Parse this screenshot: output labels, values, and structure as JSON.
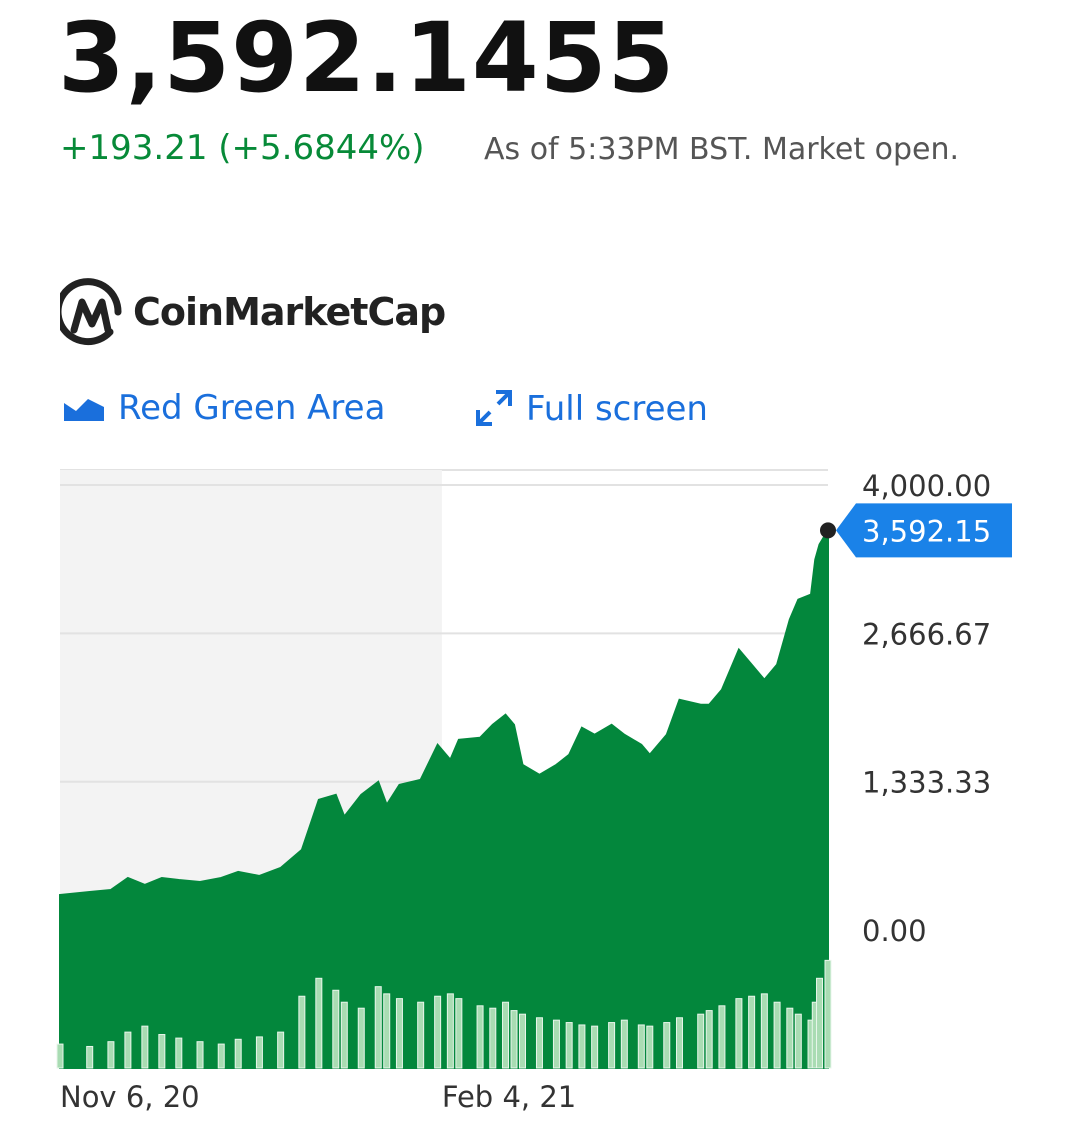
{
  "header": {
    "price": "3,592.1455",
    "change": "+193.21 (+5.6844%)",
    "as_of": "As of 5:33PM BST. Market open.",
    "source": "CoinMarketCap"
  },
  "toolbar": {
    "chart_style": "Red Green Area",
    "full_screen": "Full screen"
  },
  "chart_data": {
    "type": "area",
    "color": "#03873c",
    "volume_color": "#a9dcb3",
    "x": [
      0,
      7,
      12,
      16,
      20,
      24,
      28,
      33,
      38,
      42,
      47,
      52,
      57,
      61,
      65,
      67,
      71,
      75,
      77,
      80,
      85,
      89,
      92,
      94,
      99,
      102,
      105,
      107,
      109,
      113,
      117,
      120,
      123,
      126,
      130,
      133,
      137,
      139,
      143,
      146,
      151,
      153,
      156,
      160,
      163,
      166,
      169,
      172,
      174,
      177,
      178,
      179,
      181
    ],
    "values": [
      315,
      342,
      360,
      468,
      405,
      468,
      450,
      432,
      468,
      522,
      486,
      558,
      720,
      1170,
      1215,
      1020,
      1215,
      1332,
      1125,
      1305,
      1350,
      1665,
      1530,
      1710,
      1728,
      1845,
      1935,
      1845,
      1485,
      1395,
      1485,
      1575,
      1818,
      1755,
      1845,
      1755,
      1665,
      1575,
      1755,
      2070,
      2025,
      2025,
      2160,
      2520,
      2385,
      2250,
      2385,
      2790,
      2970,
      3015,
      3330,
      3465,
      3592.15
    ],
    "value_labels": [
      null,
      null,
      null,
      null,
      null,
      null,
      null,
      null,
      null,
      null,
      null,
      null,
      null,
      null,
      null,
      null,
      null,
      null,
      null,
      null,
      null,
      null,
      null,
      null,
      null,
      null,
      null,
      null,
      null,
      null,
      null,
      null,
      null,
      null,
      null,
      null,
      null,
      null,
      null,
      null,
      null,
      null,
      null,
      null,
      null,
      null,
      null,
      null,
      null,
      null,
      null,
      null,
      "3,592.15"
    ],
    "volume": [
      20,
      18,
      22,
      30,
      35,
      28,
      25,
      22,
      20,
      24,
      26,
      30,
      60,
      75,
      65,
      55,
      50,
      68,
      62,
      58,
      55,
      60,
      62,
      58,
      52,
      50,
      55,
      48,
      45,
      42,
      40,
      38,
      36,
      35,
      38,
      40,
      36,
      35,
      38,
      42,
      45,
      48,
      52,
      58,
      60,
      62,
      55,
      50,
      45,
      40,
      55,
      75,
      90
    ],
    "y2lim": [
      0,
      500
    ],
    "xlim": [
      0,
      181
    ],
    "xticks": [
      {
        "value": 0,
        "label": "Nov 6, 20"
      },
      {
        "value": 90,
        "label": "Feb 4, 21"
      }
    ],
    "ylim": [
      -1240,
      4135
    ],
    "yticks": [
      {
        "value": 0,
        "label": "0.00"
      },
      {
        "value": 1333.33,
        "label": "1,333.33"
      },
      {
        "value": 2666.67,
        "label": "2,666.67"
      },
      {
        "value": 4000,
        "label": "4,000.00"
      }
    ],
    "grid": true
  }
}
